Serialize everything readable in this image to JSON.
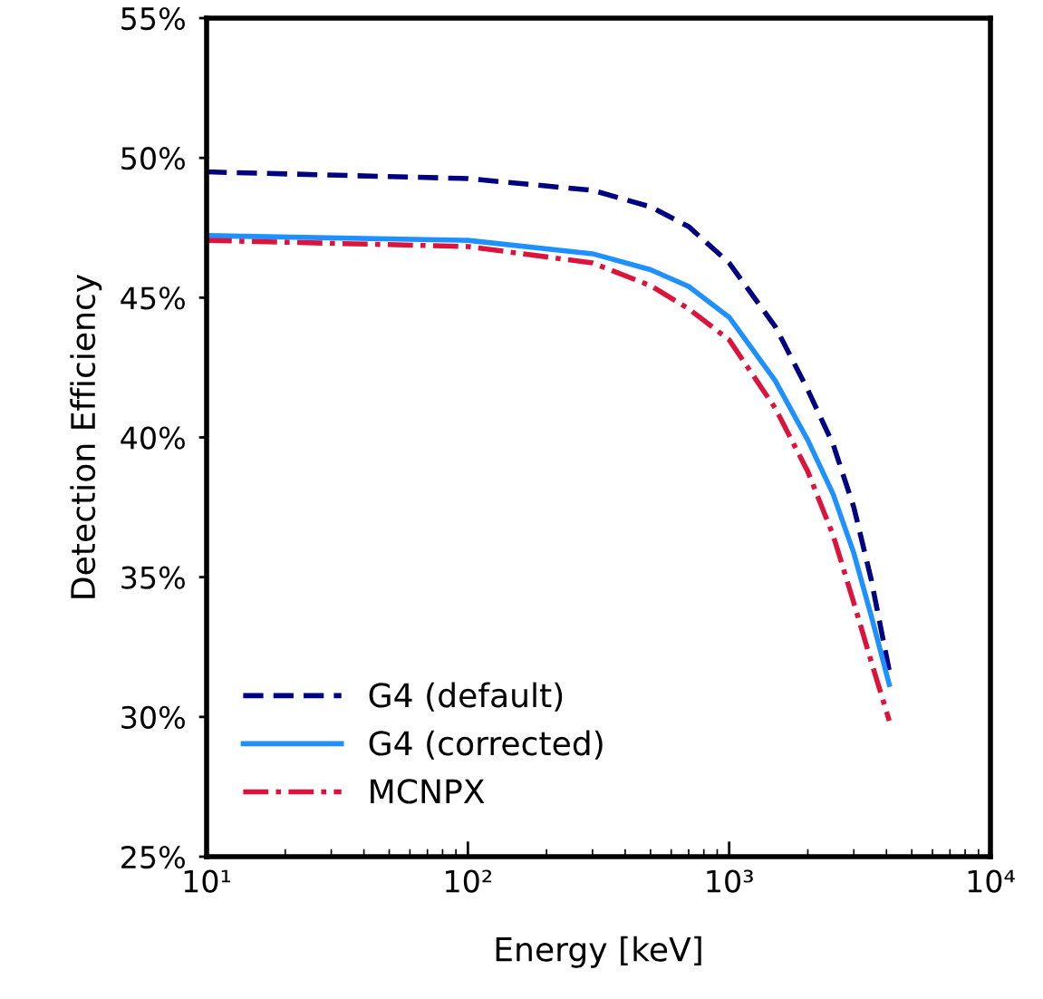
{
  "chart_data": {
    "type": "line",
    "xlabel": "Energy [keV]",
    "ylabel": "Detection Efficiency",
    "x": [
      10,
      100,
      300,
      500,
      700,
      1000,
      1500,
      2000,
      2500,
      3000,
      3500,
      4100
    ],
    "series": [
      {
        "name": "G4 (default)",
        "color": "#000080",
        "line_style": "dashed",
        "values": [
          49.5,
          49.26,
          48.84,
          48.25,
          47.54,
          46.24,
          43.97,
          41.7,
          39.75,
          37.5,
          34.9,
          31.65
        ]
      },
      {
        "name": "G4 (corrected)",
        "color": "#1e90ff",
        "line_style": "solid",
        "values": [
          47.22,
          47.05,
          46.57,
          46.0,
          45.4,
          44.3,
          42.03,
          39.9,
          37.97,
          35.86,
          33.6,
          31.16
        ]
      },
      {
        "name": "MCNPX",
        "color": "#dc143c",
        "line_style": "dashdot",
        "values": [
          47.05,
          46.83,
          46.24,
          45.43,
          44.6,
          43.49,
          41.05,
          38.78,
          36.5,
          34.08,
          31.97,
          29.86
        ]
      }
    ],
    "log": "x",
    "xlim": [
      10,
      10000
    ],
    "xticks": [
      {
        "value": 10,
        "label": "10¹"
      },
      {
        "value": 100,
        "label": "10²"
      },
      {
        "value": 1000,
        "label": "10³"
      },
      {
        "value": 10000,
        "label": "10⁴"
      }
    ],
    "ylim": [
      25,
      55
    ],
    "yticks": [
      {
        "value": 25,
        "label": "25%"
      },
      {
        "value": 30,
        "label": "30%"
      },
      {
        "value": 35,
        "label": "35%"
      },
      {
        "value": 40,
        "label": "40%"
      },
      {
        "value": 45,
        "label": "45%"
      },
      {
        "value": 50,
        "label": "50%"
      },
      {
        "value": 55,
        "label": "55%"
      }
    ],
    "grid": false,
    "legend": "bottom left"
  }
}
